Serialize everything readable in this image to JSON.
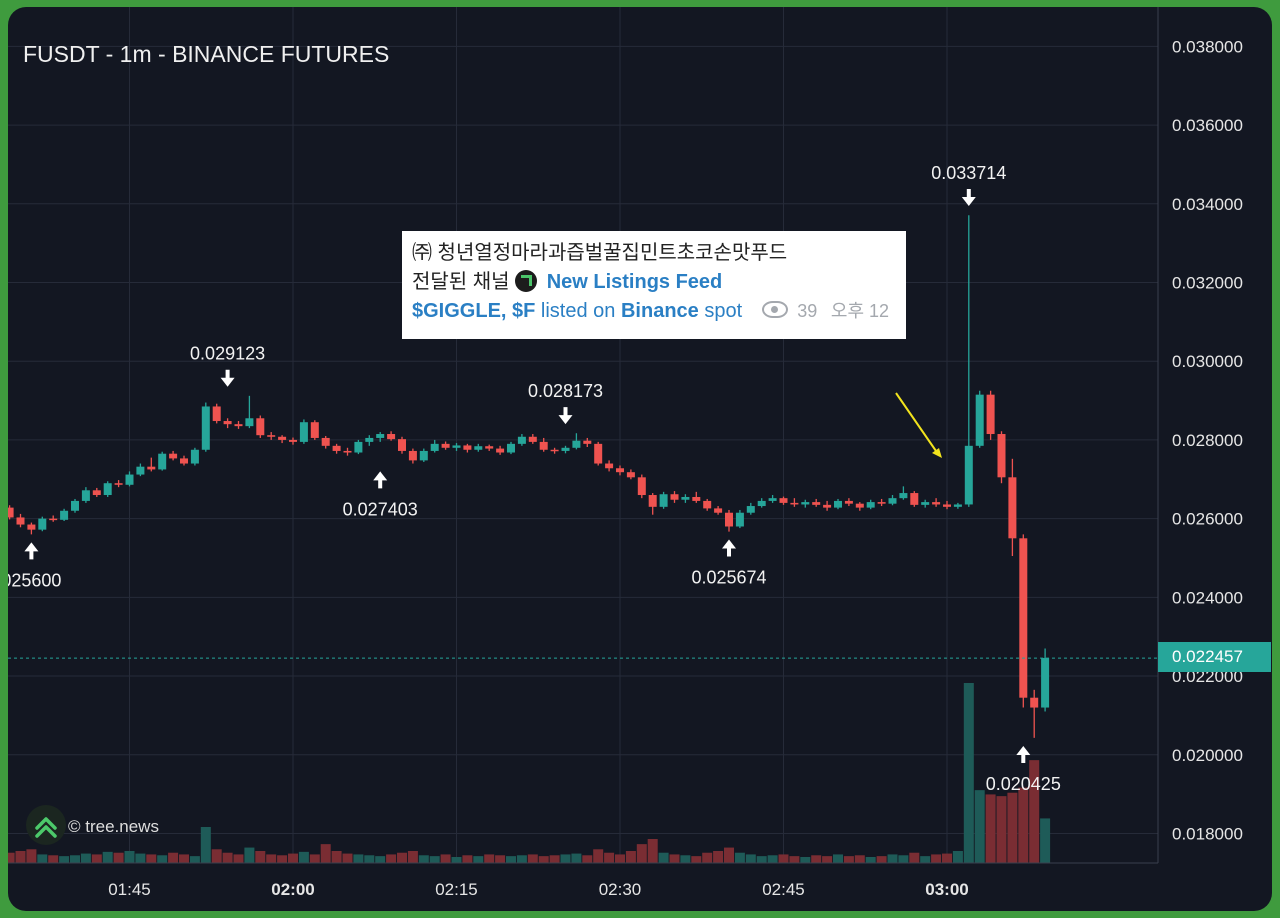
{
  "chart_data": {
    "type": "candlestick",
    "title": "FUSDT - 1m - BINANCE FUTURES",
    "price_ticks": [
      "0.018000",
      "0.020000",
      "0.022000",
      "0.024000",
      "0.026000",
      "0.028000",
      "0.030000",
      "0.032000",
      "0.034000",
      "0.036000",
      "0.038000"
    ],
    "ylim": [
      0.01725,
      0.039
    ],
    "time_ticks": [
      {
        "label": "01:45",
        "minute": -15,
        "bold": false
      },
      {
        "label": "02:00",
        "minute": 0,
        "bold": true
      },
      {
        "label": "02:15",
        "minute": 15,
        "bold": false
      },
      {
        "label": "02:30",
        "minute": 30,
        "bold": false
      },
      {
        "label": "02:45",
        "minute": 45,
        "bold": false
      },
      {
        "label": "03:00",
        "minute": 60,
        "bold": true
      }
    ],
    "current_price": "0.022457",
    "up_color": "#26a69a",
    "down_color": "#ef5350",
    "annotations": [
      {
        "label": "0.033714",
        "minute": 62,
        "price": 0.033714,
        "direction": "down",
        "position": "above"
      },
      {
        "label": "0.029123",
        "minute": -6,
        "price": 0.029123,
        "direction": "down",
        "position": "above"
      },
      {
        "label": "0.028173",
        "minute": 25,
        "price": 0.028173,
        "direction": "down",
        "position": "above"
      },
      {
        "label": "0.027403",
        "minute": 8,
        "price": 0.027403,
        "direction": "up",
        "position": "below"
      },
      {
        "label": "025600",
        "minute": -24,
        "price": 0.0256,
        "direction": "up",
        "position": "below"
      },
      {
        "label": "0.025674",
        "minute": 40,
        "price": 0.025674,
        "direction": "up",
        "position": "below"
      },
      {
        "label": "0.020425",
        "minute": 67,
        "price": 0.020425,
        "direction": "up",
        "position": "below"
      }
    ],
    "candles": [
      {
        "m": -26,
        "o": 0.02628,
        "h": 0.02634,
        "l": 0.02598,
        "c": 0.02603,
        "v": 12
      },
      {
        "m": -25,
        "o": 0.02603,
        "h": 0.02612,
        "l": 0.02578,
        "c": 0.02585,
        "v": 14
      },
      {
        "m": -24,
        "o": 0.02585,
        "h": 0.0259,
        "l": 0.0256,
        "c": 0.02572,
        "v": 16
      },
      {
        "m": -23,
        "o": 0.02572,
        "h": 0.02605,
        "l": 0.02568,
        "c": 0.026,
        "v": 10
      },
      {
        "m": -22,
        "o": 0.026,
        "h": 0.02608,
        "l": 0.02592,
        "c": 0.02597,
        "v": 9
      },
      {
        "m": -21,
        "o": 0.02597,
        "h": 0.02625,
        "l": 0.02594,
        "c": 0.0262,
        "v": 8
      },
      {
        "m": -20,
        "o": 0.0262,
        "h": 0.0265,
        "l": 0.02615,
        "c": 0.02645,
        "v": 9
      },
      {
        "m": -19,
        "o": 0.02645,
        "h": 0.0268,
        "l": 0.0264,
        "c": 0.02672,
        "v": 11
      },
      {
        "m": -18,
        "o": 0.02672,
        "h": 0.02678,
        "l": 0.02655,
        "c": 0.0266,
        "v": 10
      },
      {
        "m": -17,
        "o": 0.0266,
        "h": 0.02695,
        "l": 0.02655,
        "c": 0.0269,
        "v": 13
      },
      {
        "m": -16,
        "o": 0.0269,
        "h": 0.02698,
        "l": 0.0268,
        "c": 0.02686,
        "v": 12
      },
      {
        "m": -15,
        "o": 0.02686,
        "h": 0.0272,
        "l": 0.02682,
        "c": 0.02712,
        "v": 14
      },
      {
        "m": -14,
        "o": 0.02712,
        "h": 0.0274,
        "l": 0.02708,
        "c": 0.02732,
        "v": 11
      },
      {
        "m": -13,
        "o": 0.02732,
        "h": 0.02755,
        "l": 0.0272,
        "c": 0.02725,
        "v": 10
      },
      {
        "m": -12,
        "o": 0.02725,
        "h": 0.0277,
        "l": 0.02722,
        "c": 0.02765,
        "v": 9
      },
      {
        "m": -11,
        "o": 0.02765,
        "h": 0.02772,
        "l": 0.02748,
        "c": 0.02753,
        "v": 12
      },
      {
        "m": -10,
        "o": 0.02753,
        "h": 0.0276,
        "l": 0.02735,
        "c": 0.0274,
        "v": 10
      },
      {
        "m": -9,
        "o": 0.0274,
        "h": 0.0278,
        "l": 0.02735,
        "c": 0.02775,
        "v": 8
      },
      {
        "m": -8,
        "o": 0.02775,
        "h": 0.02895,
        "l": 0.0277,
        "c": 0.02885,
        "v": 42
      },
      {
        "m": -7,
        "o": 0.02885,
        "h": 0.02892,
        "l": 0.02842,
        "c": 0.02848,
        "v": 16
      },
      {
        "m": -6,
        "o": 0.02848,
        "h": 0.02855,
        "l": 0.0283,
        "c": 0.0284,
        "v": 12
      },
      {
        "m": -5,
        "o": 0.0284,
        "h": 0.02848,
        "l": 0.02828,
        "c": 0.02835,
        "v": 10
      },
      {
        "m": -4,
        "o": 0.02835,
        "h": 0.02912,
        "l": 0.0283,
        "c": 0.02855,
        "v": 18
      },
      {
        "m": -3,
        "o": 0.02855,
        "h": 0.02862,
        "l": 0.02805,
        "c": 0.02812,
        "v": 14
      },
      {
        "m": -2,
        "o": 0.02812,
        "h": 0.0282,
        "l": 0.028,
        "c": 0.02808,
        "v": 10
      },
      {
        "m": -1,
        "o": 0.02808,
        "h": 0.02812,
        "l": 0.02792,
        "c": 0.028,
        "v": 9
      },
      {
        "m": 0,
        "o": 0.028,
        "h": 0.02806,
        "l": 0.02788,
        "c": 0.02795,
        "v": 11
      },
      {
        "m": 1,
        "o": 0.02795,
        "h": 0.02852,
        "l": 0.0279,
        "c": 0.02845,
        "v": 13
      },
      {
        "m": 2,
        "o": 0.02845,
        "h": 0.0285,
        "l": 0.028,
        "c": 0.02805,
        "v": 10
      },
      {
        "m": 3,
        "o": 0.02805,
        "h": 0.0281,
        "l": 0.02778,
        "c": 0.02785,
        "v": 22
      },
      {
        "m": 4,
        "o": 0.02785,
        "h": 0.0279,
        "l": 0.02765,
        "c": 0.02772,
        "v": 14
      },
      {
        "m": 5,
        "o": 0.02772,
        "h": 0.0278,
        "l": 0.0276,
        "c": 0.02768,
        "v": 11
      },
      {
        "m": 6,
        "o": 0.02768,
        "h": 0.028,
        "l": 0.02764,
        "c": 0.02795,
        "v": 10
      },
      {
        "m": 7,
        "o": 0.02795,
        "h": 0.02812,
        "l": 0.02785,
        "c": 0.02805,
        "v": 9
      },
      {
        "m": 8,
        "o": 0.02805,
        "h": 0.0282,
        "l": 0.02795,
        "c": 0.02815,
        "v": 8
      },
      {
        "m": 9,
        "o": 0.02815,
        "h": 0.02822,
        "l": 0.02798,
        "c": 0.02802,
        "v": 10
      },
      {
        "m": 10,
        "o": 0.02802,
        "h": 0.02808,
        "l": 0.02765,
        "c": 0.02772,
        "v": 12
      },
      {
        "m": 11,
        "o": 0.02772,
        "h": 0.02778,
        "l": 0.0274,
        "c": 0.02748,
        "v": 14
      },
      {
        "m": 12,
        "o": 0.02748,
        "h": 0.02778,
        "l": 0.02744,
        "c": 0.02772,
        "v": 9
      },
      {
        "m": 13,
        "o": 0.02772,
        "h": 0.028,
        "l": 0.02768,
        "c": 0.0279,
        "v": 8
      },
      {
        "m": 14,
        "o": 0.0279,
        "h": 0.02796,
        "l": 0.02775,
        "c": 0.0278,
        "v": 10
      },
      {
        "m": 15,
        "o": 0.0278,
        "h": 0.02792,
        "l": 0.02772,
        "c": 0.02786,
        "v": 7
      },
      {
        "m": 16,
        "o": 0.02786,
        "h": 0.0279,
        "l": 0.02768,
        "c": 0.02775,
        "v": 9
      },
      {
        "m": 17,
        "o": 0.02775,
        "h": 0.0279,
        "l": 0.0277,
        "c": 0.02784,
        "v": 8
      },
      {
        "m": 18,
        "o": 0.02784,
        "h": 0.02788,
        "l": 0.02772,
        "c": 0.02778,
        "v": 10
      },
      {
        "m": 19,
        "o": 0.02778,
        "h": 0.02785,
        "l": 0.02762,
        "c": 0.02768,
        "v": 9
      },
      {
        "m": 20,
        "o": 0.02768,
        "h": 0.02795,
        "l": 0.02764,
        "c": 0.0279,
        "v": 8
      },
      {
        "m": 21,
        "o": 0.0279,
        "h": 0.02815,
        "l": 0.02785,
        "c": 0.02808,
        "v": 9
      },
      {
        "m": 22,
        "o": 0.02808,
        "h": 0.02815,
        "l": 0.0279,
        "c": 0.02795,
        "v": 10
      },
      {
        "m": 23,
        "o": 0.02795,
        "h": 0.02805,
        "l": 0.0277,
        "c": 0.02775,
        "v": 8
      },
      {
        "m": 24,
        "o": 0.02775,
        "h": 0.0278,
        "l": 0.02765,
        "c": 0.02772,
        "v": 9
      },
      {
        "m": 25,
        "o": 0.02772,
        "h": 0.02785,
        "l": 0.02766,
        "c": 0.0278,
        "v": 10
      },
      {
        "m": 26,
        "o": 0.0278,
        "h": 0.02817,
        "l": 0.02776,
        "c": 0.02798,
        "v": 11
      },
      {
        "m": 27,
        "o": 0.02798,
        "h": 0.02805,
        "l": 0.02782,
        "c": 0.0279,
        "v": 9
      },
      {
        "m": 28,
        "o": 0.0279,
        "h": 0.02795,
        "l": 0.02735,
        "c": 0.0274,
        "v": 16
      },
      {
        "m": 29,
        "o": 0.0274,
        "h": 0.02748,
        "l": 0.0272,
        "c": 0.02728,
        "v": 12
      },
      {
        "m": 30,
        "o": 0.02728,
        "h": 0.02735,
        "l": 0.0271,
        "c": 0.02718,
        "v": 10
      },
      {
        "m": 31,
        "o": 0.02718,
        "h": 0.02725,
        "l": 0.027,
        "c": 0.02705,
        "v": 14
      },
      {
        "m": 32,
        "o": 0.02705,
        "h": 0.02712,
        "l": 0.02652,
        "c": 0.0266,
        "v": 22
      },
      {
        "m": 33,
        "o": 0.0266,
        "h": 0.02665,
        "l": 0.0261,
        "c": 0.0263,
        "v": 28
      },
      {
        "m": 34,
        "o": 0.0263,
        "h": 0.02668,
        "l": 0.02625,
        "c": 0.02662,
        "v": 12
      },
      {
        "m": 35,
        "o": 0.02662,
        "h": 0.0267,
        "l": 0.0264,
        "c": 0.02648,
        "v": 10
      },
      {
        "m": 36,
        "o": 0.02648,
        "h": 0.02662,
        "l": 0.0264,
        "c": 0.02655,
        "v": 9
      },
      {
        "m": 37,
        "o": 0.02655,
        "h": 0.02668,
        "l": 0.0264,
        "c": 0.02645,
        "v": 8
      },
      {
        "m": 38,
        "o": 0.02645,
        "h": 0.0265,
        "l": 0.0262,
        "c": 0.02626,
        "v": 12
      },
      {
        "m": 39,
        "o": 0.02626,
        "h": 0.02632,
        "l": 0.0261,
        "c": 0.02615,
        "v": 14
      },
      {
        "m": 40,
        "o": 0.02615,
        "h": 0.02622,
        "l": 0.02567,
        "c": 0.0258,
        "v": 18
      },
      {
        "m": 41,
        "o": 0.0258,
        "h": 0.02622,
        "l": 0.02576,
        "c": 0.02615,
        "v": 12
      },
      {
        "m": 42,
        "o": 0.02615,
        "h": 0.0264,
        "l": 0.0261,
        "c": 0.02632,
        "v": 10
      },
      {
        "m": 43,
        "o": 0.02632,
        "h": 0.02652,
        "l": 0.02628,
        "c": 0.02645,
        "v": 8
      },
      {
        "m": 44,
        "o": 0.02645,
        "h": 0.0266,
        "l": 0.0264,
        "c": 0.02652,
        "v": 9
      },
      {
        "m": 45,
        "o": 0.02652,
        "h": 0.02656,
        "l": 0.02635,
        "c": 0.0264,
        "v": 10
      },
      {
        "m": 46,
        "o": 0.0264,
        "h": 0.02652,
        "l": 0.0263,
        "c": 0.02636,
        "v": 8
      },
      {
        "m": 47,
        "o": 0.02636,
        "h": 0.02648,
        "l": 0.02628,
        "c": 0.02642,
        "v": 7
      },
      {
        "m": 48,
        "o": 0.02642,
        "h": 0.0265,
        "l": 0.0263,
        "c": 0.02635,
        "v": 9
      },
      {
        "m": 49,
        "o": 0.02635,
        "h": 0.02645,
        "l": 0.0262,
        "c": 0.02628,
        "v": 8
      },
      {
        "m": 50,
        "o": 0.02628,
        "h": 0.0265,
        "l": 0.02624,
        "c": 0.02645,
        "v": 10
      },
      {
        "m": 51,
        "o": 0.02645,
        "h": 0.02652,
        "l": 0.02632,
        "c": 0.02638,
        "v": 8
      },
      {
        "m": 52,
        "o": 0.02638,
        "h": 0.02642,
        "l": 0.0262,
        "c": 0.02628,
        "v": 9
      },
      {
        "m": 53,
        "o": 0.02628,
        "h": 0.02648,
        "l": 0.02624,
        "c": 0.02642,
        "v": 7
      },
      {
        "m": 54,
        "o": 0.02642,
        "h": 0.0265,
        "l": 0.02632,
        "c": 0.02638,
        "v": 8
      },
      {
        "m": 55,
        "o": 0.02638,
        "h": 0.0266,
        "l": 0.02634,
        "c": 0.02652,
        "v": 10
      },
      {
        "m": 56,
        "o": 0.02652,
        "h": 0.02682,
        "l": 0.02648,
        "c": 0.02665,
        "v": 9
      },
      {
        "m": 57,
        "o": 0.02665,
        "h": 0.0267,
        "l": 0.0263,
        "c": 0.02635,
        "v": 12
      },
      {
        "m": 58,
        "o": 0.02635,
        "h": 0.02648,
        "l": 0.02628,
        "c": 0.02642,
        "v": 8
      },
      {
        "m": 59,
        "o": 0.02642,
        "h": 0.02652,
        "l": 0.0263,
        "c": 0.02636,
        "v": 10
      },
      {
        "m": 60,
        "o": 0.02636,
        "h": 0.02645,
        "l": 0.02624,
        "c": 0.0263,
        "v": 11
      },
      {
        "m": 61,
        "o": 0.0263,
        "h": 0.0264,
        "l": 0.02625,
        "c": 0.02636,
        "v": 14
      },
      {
        "m": 62,
        "o": 0.02636,
        "h": 0.03371,
        "l": 0.0263,
        "c": 0.02785,
        "v": 210
      },
      {
        "m": 63,
        "o": 0.02785,
        "h": 0.02925,
        "l": 0.0278,
        "c": 0.02915,
        "v": 85
      },
      {
        "m": 64,
        "o": 0.02915,
        "h": 0.02925,
        "l": 0.028,
        "c": 0.02815,
        "v": 80
      },
      {
        "m": 65,
        "o": 0.02815,
        "h": 0.02822,
        "l": 0.0269,
        "c": 0.02705,
        "v": 78
      },
      {
        "m": 66,
        "o": 0.02705,
        "h": 0.02752,
        "l": 0.02505,
        "c": 0.0255,
        "v": 82
      },
      {
        "m": 67,
        "o": 0.0255,
        "h": 0.0256,
        "l": 0.0212,
        "c": 0.02145,
        "v": 88
      },
      {
        "m": 68,
        "o": 0.02145,
        "h": 0.02165,
        "l": 0.02043,
        "c": 0.0212,
        "v": 120
      },
      {
        "m": 69,
        "o": 0.0212,
        "h": 0.0227,
        "l": 0.0211,
        "c": 0.02246,
        "v": 52
      }
    ]
  },
  "message_card": {
    "line1": "㈜ 청년열정마라과즙벌꿀집민트초코손맛푸드",
    "line2_prefix": "전달된 채널",
    "channel_icon": "feed-logo-icon",
    "channel_name": "New Listings Feed",
    "token_text": "$GIGGLE, $F",
    "listed_text": "listed on",
    "exchange_text": "Binance",
    "spot_text": "spot",
    "views_icon": "eye-icon",
    "views": "39",
    "time_text": "오후 12"
  },
  "footer": {
    "logo_icon": "tree-news-logo-icon",
    "copyright": "© tree.news"
  }
}
